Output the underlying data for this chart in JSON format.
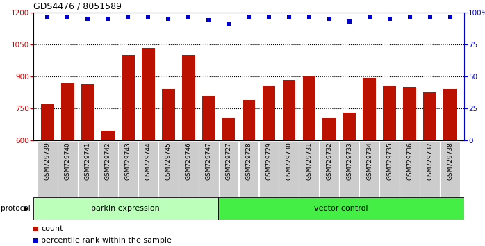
{
  "title": "GDS4476 / 8051589",
  "samples": [
    "GSM729739",
    "GSM729740",
    "GSM729741",
    "GSM729742",
    "GSM729743",
    "GSM729744",
    "GSM729745",
    "GSM729746",
    "GSM729747",
    "GSM729727",
    "GSM729728",
    "GSM729729",
    "GSM729730",
    "GSM729731",
    "GSM729732",
    "GSM729733",
    "GSM729734",
    "GSM729735",
    "GSM729736",
    "GSM729737",
    "GSM729738"
  ],
  "bar_values": [
    770,
    870,
    865,
    645,
    1000,
    1035,
    840,
    1000,
    810,
    705,
    790,
    855,
    885,
    900,
    705,
    730,
    895,
    855,
    850,
    825,
    840
  ],
  "blue_dot_values": [
    96,
    96,
    95,
    95,
    96,
    96,
    95,
    96,
    94,
    91,
    96,
    96,
    96,
    96,
    95,
    93,
    96,
    95,
    96,
    96,
    96
  ],
  "ylim_left": [
    600,
    1200
  ],
  "ylim_right": [
    0,
    100
  ],
  "yticks_left": [
    600,
    750,
    900,
    1050,
    1200
  ],
  "yticks_right": [
    0,
    25,
    50,
    75,
    100
  ],
  "ytick_right_labels": [
    "0",
    "25",
    "50",
    "75",
    "100%"
  ],
  "bar_color": "#bb1100",
  "dot_color": "#0000cc",
  "bar_bottom": 600,
  "parkin_count": 9,
  "vector_count": 12,
  "parkin_label": "parkin expression",
  "vector_label": "vector control",
  "protocol_label": "protocol",
  "legend_count_label": "count",
  "legend_pct_label": "percentile rank within the sample",
  "left_axis_color": "#cc0000",
  "right_axis_color": "#0000cc",
  "bottom_band_color_parkin": "#bbffbb",
  "bottom_band_color_vector": "#44ee44",
  "tick_bg_color": "#cccccc",
  "grid_yticks": [
    750,
    900,
    1050
  ]
}
